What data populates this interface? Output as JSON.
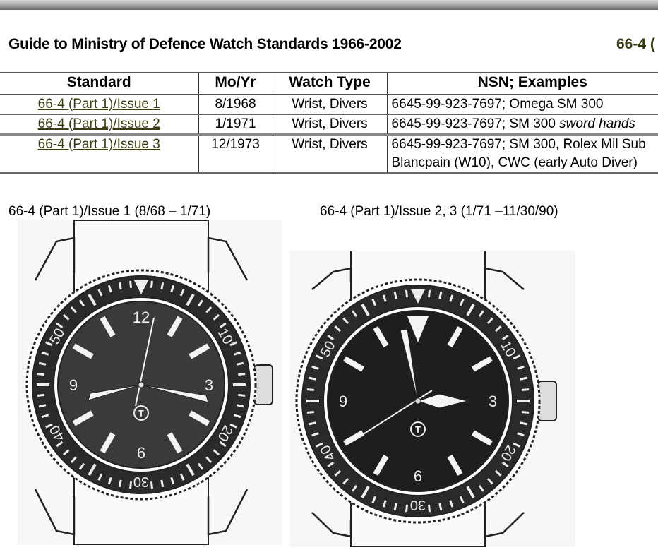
{
  "header": {
    "title": "Guide to Ministry of Defence Watch Standards 1966-2002",
    "ref": "66-4 ("
  },
  "table": {
    "columns": [
      "Standard",
      "Mo/Yr",
      "Watch Type",
      "NSN; Examples"
    ],
    "rows": [
      {
        "standard": "66-4 (Part 1)/Issue 1",
        "date": "8/1968",
        "type": "Wrist, Divers",
        "nsn": "6645-99-923-7697; Omega SM 300",
        "nsn_italic": ""
      },
      {
        "standard": "66-4 (Part 1)/Issue 2",
        "date": "1/1971",
        "type": "Wrist, Divers",
        "nsn": "6645-99-923-7697; SM 300 ",
        "nsn_italic": "sword hands"
      },
      {
        "standard": "66-4 (Part 1)/Issue 3",
        "date": "12/1973",
        "type": "Wrist, Divers",
        "nsn": "6645-99-923-7697; SM 300, Rolex Mil Sub",
        "nsn2": "Blancpain (W10), CWC (early Auto Diver)"
      }
    ]
  },
  "figures": [
    {
      "caption": "66-4 (Part 1)/Issue 1 (8/68 – 1/71)",
      "bezel_numerals": [
        "10",
        "20",
        "30",
        "40",
        "50"
      ],
      "dial_numerals": [
        "12",
        "3",
        "6",
        "9"
      ],
      "logo": "T"
    },
    {
      "caption": "66-4 (Part 1)/Issue 2, 3 (1/71 –11/30/90)",
      "bezel_numerals": [
        "10",
        "20",
        "30",
        "40",
        "50"
      ],
      "dial_numerals": [
        "3",
        "6",
        "9"
      ],
      "logo": "T"
    }
  ],
  "colors": {
    "link": "#3b3b12",
    "dial": "#222222"
  }
}
